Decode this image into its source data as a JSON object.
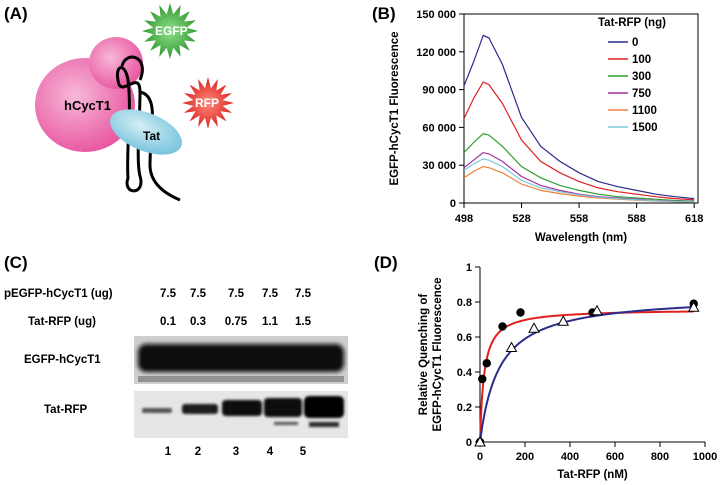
{
  "panels": {
    "a": {
      "letter": "(A)",
      "labels": {
        "hcyct1": "hCycT1",
        "egfp": "EGFP",
        "tat": "Tat",
        "rfp": "RFP"
      },
      "colors": {
        "cyclin": "#e8539f",
        "tat": "#7fc9e0",
        "egfp": "#2f9d2c",
        "rfp": "#e01a1a"
      }
    },
    "b": {
      "letter": "(B)",
      "chart_data": {
        "type": "line",
        "xlabel": "Wavelength (nm)",
        "ylabel": "EGFP-hCycT1 Fluorescence",
        "xlim": [
          498,
          620
        ],
        "ylim": [
          0,
          150000
        ],
        "x_ticks": [
          498,
          528,
          558,
          588,
          618
        ],
        "y_ticks": [
          0,
          30000,
          60000,
          90000,
          120000,
          150000
        ],
        "y_tick_labels": [
          "0",
          "30 000",
          "60 000",
          "90 000",
          "120 000",
          "150 000"
        ],
        "legend_title": "Tat-RFP (ng)",
        "legend_position": "top-right",
        "x": [
          498,
          503,
          508,
          511,
          518,
          528,
          538,
          548,
          558,
          568,
          578,
          588,
          598,
          608,
          618
        ],
        "series": [
          {
            "name": "0",
            "color": "#2b2b8c",
            "values": [
              93000,
              112000,
              133000,
              131000,
              110000,
              68000,
              45000,
              33000,
              24000,
              17000,
              13000,
              10000,
              7000,
              5000,
              3500
            ]
          },
          {
            "name": "100",
            "color": "#e02020",
            "values": [
              67000,
              83000,
              96000,
              94000,
              79000,
              50000,
              33000,
              24000,
              17000,
              12000,
              9000,
              7000,
              5000,
              3500,
              2500
            ]
          },
          {
            "name": "300",
            "color": "#2fa02f",
            "values": [
              40000,
              48000,
              55000,
              54000,
              45000,
              29000,
              20000,
              14000,
              10000,
              7000,
              5000,
              4000,
              3000,
              2000,
              1500
            ]
          },
          {
            "name": "750",
            "color": "#a0309c",
            "values": [
              28000,
              34000,
              40000,
              39000,
              33000,
              21000,
              14000,
              10000,
              7000,
              5000,
              4000,
              3000,
              2000,
              1500,
              1000
            ]
          },
          {
            "name": "1100",
            "color": "#f0803c",
            "values": [
              20000,
              25000,
              29000,
              28000,
              24000,
              15000,
              10000,
              7500,
              5500,
              4000,
              3000,
              2200,
              1600,
              1100,
              800
            ]
          },
          {
            "name": "1500",
            "color": "#7fc8d8",
            "values": [
              26000,
              31000,
              35000,
              34000,
              29000,
              18000,
              12000,
              9000,
              6500,
              4500,
              3500,
              2500,
              1800,
              1200,
              900
            ]
          }
        ]
      }
    },
    "c": {
      "letter": "(C)",
      "row_labels": {
        "plasmid": "pEGFP-hCycT1 (ug)",
        "tat": "Tat-RFP (ug)"
      },
      "plasmid_values": [
        "7.5",
        "7.5",
        "7.5",
        "7.5",
        "7.5"
      ],
      "tat_values": [
        "0.1",
        "0.3",
        "0.75",
        "1.1",
        "1.5"
      ],
      "band_labels": {
        "egfp": "EGFP-hCycT1",
        "tatrfp": "Tat-RFP"
      },
      "lanes": [
        "1",
        "2",
        "3",
        "4",
        "5"
      ]
    },
    "d": {
      "letter": "(D)",
      "chart_data": {
        "type": "scatter",
        "xlabel": "Tat-RFP (nM)",
        "ylabel_line1": "Relative Quenching of",
        "ylabel_line2": "EGFP-hCycT1 Fluorescence",
        "xlim": [
          0,
          1000
        ],
        "ylim": [
          0,
          1
        ],
        "x_ticks": [
          0,
          200,
          400,
          600,
          800,
          1000
        ],
        "y_ticks": [
          0,
          0.2,
          0.4,
          0.6,
          0.8,
          1
        ],
        "y_tick_labels": [
          "0",
          "0.2",
          "0.4",
          "0.6",
          "0.8",
          "1"
        ],
        "series": [
          {
            "marker": "filled-circle",
            "color": "#e02020",
            "fit_bmax": 0.76,
            "fit_kd": 18,
            "points": [
              [
                0,
                0
              ],
              [
                10,
                0.36
              ],
              [
                30,
                0.45
              ],
              [
                100,
                0.66
              ],
              [
                180,
                0.74
              ],
              [
                500,
                0.74
              ],
              [
                950,
                0.79
              ]
            ]
          },
          {
            "marker": "open-triangle",
            "color": "#2b2b8c",
            "fit_bmax": 0.84,
            "fit_kd": 85,
            "points": [
              [
                0,
                0
              ],
              [
                140,
                0.54
              ],
              [
                240,
                0.65
              ],
              [
                370,
                0.69
              ],
              [
                520,
                0.75
              ],
              [
                950,
                0.77
              ]
            ]
          }
        ]
      }
    }
  }
}
